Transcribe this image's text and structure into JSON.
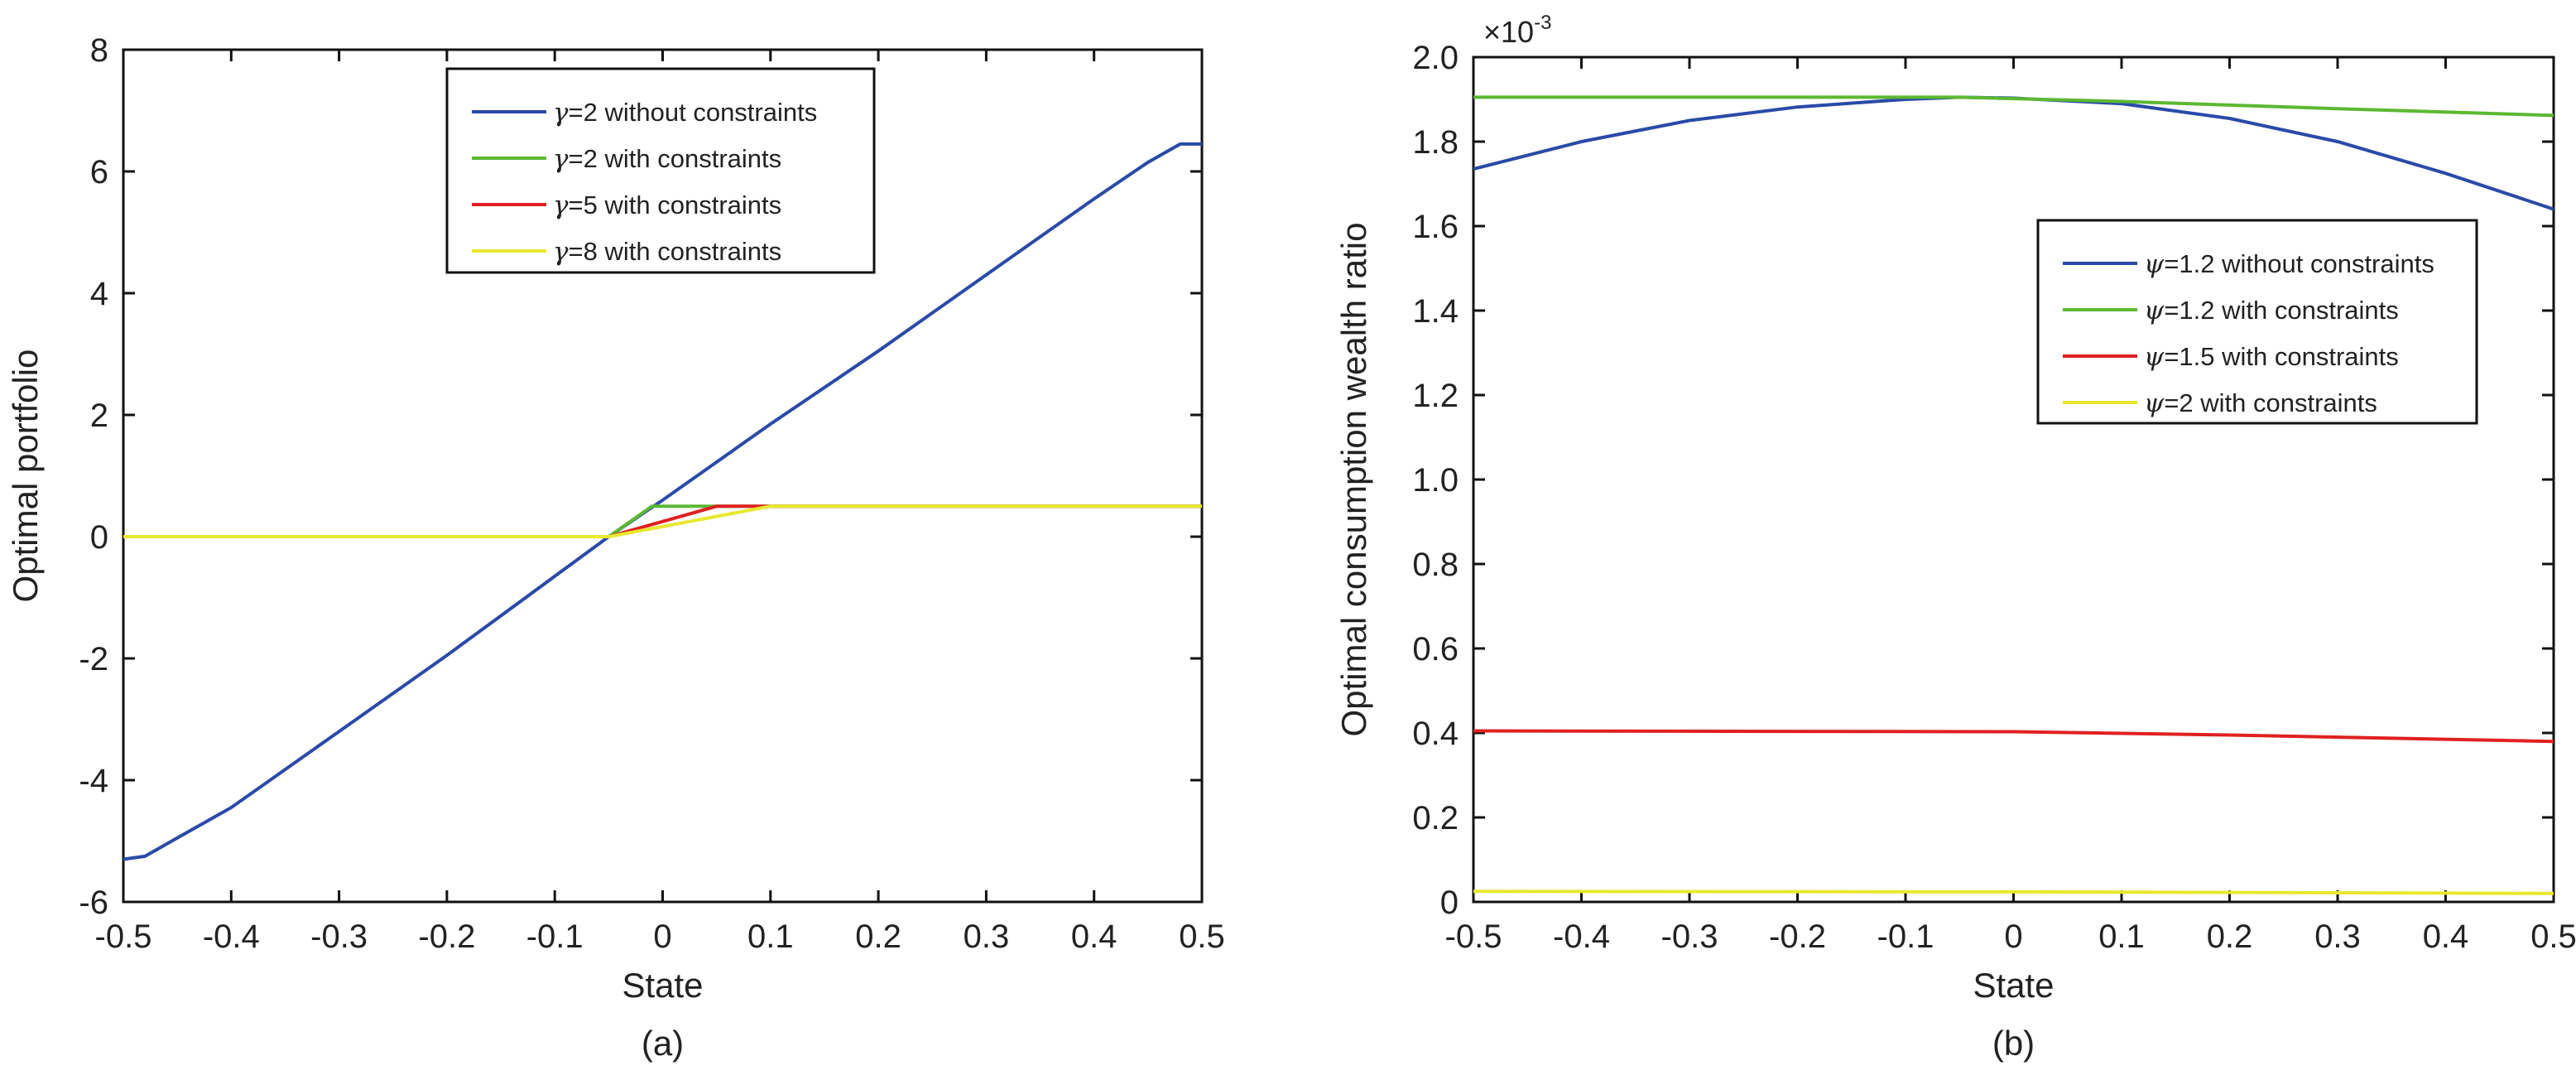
{
  "chart_data": [
    {
      "type": "line",
      "caption": "(a)",
      "xlabel": "State",
      "ylabel": "Optimal portfolio",
      "xlim": [
        -0.5,
        0.5
      ],
      "ylim": [
        -6,
        8
      ],
      "xticks": [
        "-0.5",
        "-0.4",
        "-0.3",
        "-0.2",
        "-0.1",
        "0",
        "0.1",
        "0.2",
        "0.3",
        "0.4",
        "0.5"
      ],
      "yticks": [
        "-6",
        "-4",
        "-2",
        "0",
        "2",
        "4",
        "6",
        "8"
      ],
      "grid": false,
      "legend_position": "top-center",
      "series": [
        {
          "name_prefix": "γ",
          "name": "=2 without constraints",
          "color": "#2a4aa8",
          "x": [
            -0.5,
            -0.48,
            -0.45,
            -0.4,
            -0.3,
            -0.2,
            -0.1,
            -0.05,
            0,
            0.1,
            0.2,
            0.3,
            0.4,
            0.45,
            0.48,
            0.5
          ],
          "y": [
            -5.3,
            -5.25,
            -4.95,
            -4.45,
            -3.2,
            -1.95,
            -0.65,
            0,
            0.6,
            1.85,
            3.05,
            4.3,
            5.55,
            6.15,
            6.45,
            6.45
          ]
        },
        {
          "name_prefix": "γ",
          "name": "=2 with constraints",
          "color": "#5cb832",
          "x": [
            -0.5,
            -0.05,
            -0.01,
            0.5
          ],
          "y": [
            0,
            0,
            0.5,
            0.5
          ]
        },
        {
          "name_prefix": "γ",
          "name": "=5 with constraints",
          "color": "#e02020",
          "x": [
            -0.5,
            -0.05,
            0.05,
            0.5
          ],
          "y": [
            0,
            0,
            0.5,
            0.5
          ]
        },
        {
          "name_prefix": "γ",
          "name": "=8 with constraints",
          "color": "#e8e830",
          "x": [
            -0.5,
            -0.05,
            0.1,
            0.5
          ],
          "y": [
            0,
            0,
            0.5,
            0.5
          ]
        }
      ]
    },
    {
      "type": "line",
      "caption": "(b)",
      "xlabel": "State",
      "ylabel": "Optimal consumption wealth ratio",
      "yscale_label": "×10",
      "yscale_exponent": "-3",
      "xlim": [
        -0.5,
        0.5
      ],
      "ylim": [
        0,
        2.0
      ],
      "xticks": [
        "-0.5",
        "-0.4",
        "-0.3",
        "-0.2",
        "-0.1",
        "0",
        "0.1",
        "0.2",
        "0.3",
        "0.4",
        "0.5"
      ],
      "yticks": [
        "0",
        "0.2",
        "0.4",
        "0.6",
        "0.8",
        "1.0",
        "1.2",
        "1.4",
        "1.6",
        "1.8",
        "2.0"
      ],
      "grid": false,
      "legend_position": "upper-right",
      "series": [
        {
          "name_prefix": "ψ",
          "name": "=1.2 without constraints",
          "color": "#2a4aa8",
          "x": [
            -0.5,
            -0.4,
            -0.3,
            -0.2,
            -0.1,
            -0.05,
            0,
            0.1,
            0.2,
            0.3,
            0.4,
            0.5
          ],
          "y": [
            1.735,
            1.8,
            1.85,
            1.882,
            1.9,
            1.905,
            1.903,
            1.89,
            1.855,
            1.8,
            1.725,
            1.64
          ]
        },
        {
          "name_prefix": "ψ",
          "name": "=1.2 with constraints",
          "color": "#5cb832",
          "x": [
            -0.5,
            -0.05,
            0.1,
            0.3,
            0.5
          ],
          "y": [
            1.905,
            1.905,
            1.895,
            1.878,
            1.862
          ]
        },
        {
          "name_prefix": "ψ",
          "name": "=1.5 with constraints",
          "color": "#e02020",
          "x": [
            -0.5,
            0,
            0.2,
            0.5
          ],
          "y": [
            0.405,
            0.403,
            0.395,
            0.38
          ]
        },
        {
          "name_prefix": "ψ",
          "name": "=2 with constraints",
          "color": "#e8e830",
          "x": [
            -0.5,
            0,
            0.5
          ],
          "y": [
            0.025,
            0.024,
            0.02
          ]
        }
      ]
    }
  ]
}
